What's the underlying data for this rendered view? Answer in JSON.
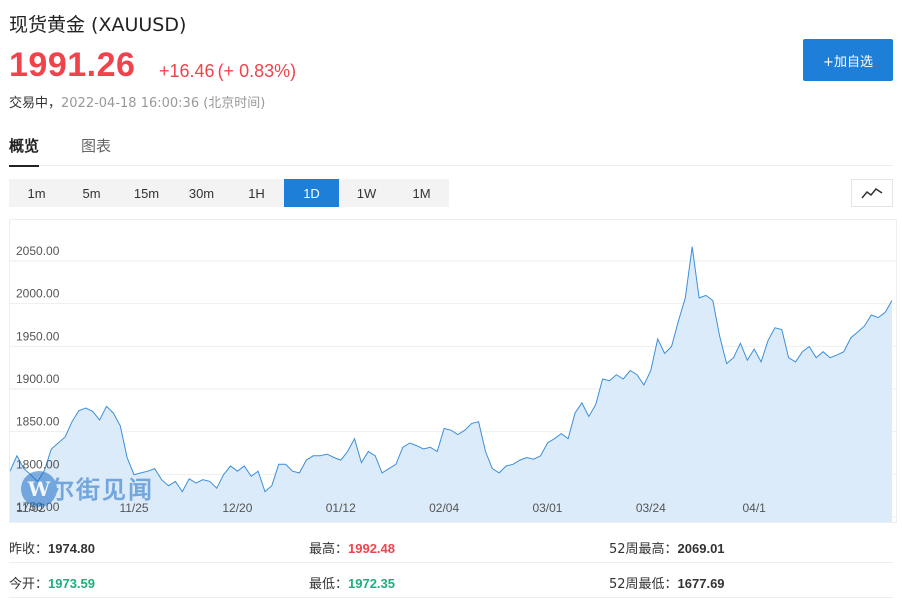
{
  "header": {
    "title": "现货黄金  (XAUUSD)",
    "price": "1991.26",
    "change": "+16.46",
    "change_pct": "(+ 0.83%)",
    "status": "交易中，",
    "timestamp": "2022-04-18 16:00:36",
    "timezone": "(北京时间)",
    "add_button": "+加自选"
  },
  "tabs": [
    {
      "label": "概览",
      "active": true
    },
    {
      "label": "图表",
      "active": false
    }
  ],
  "periods": [
    {
      "label": "1m",
      "active": false
    },
    {
      "label": "5m",
      "active": false
    },
    {
      "label": "15m",
      "active": false
    },
    {
      "label": "30m",
      "active": false
    },
    {
      "label": "1H",
      "active": false
    },
    {
      "label": "1D",
      "active": true
    },
    {
      "label": "1W",
      "active": false
    },
    {
      "label": "1M",
      "active": false
    }
  ],
  "chart_icon": "line-chart-icon",
  "watermark": "华尔街见闻",
  "colors": {
    "up": "#f0434c",
    "down": "#1fae7a",
    "accent": "#1e7fd8",
    "line": "#3b8fd9",
    "fill": "#dcebfa"
  },
  "chart_data": {
    "type": "area",
    "ylim": [
      1750,
      2080
    ],
    "yticks": [
      "2050.00",
      "2000.00",
      "1950.00",
      "1900.00",
      "1850.00",
      "1800.00",
      "1750.00"
    ],
    "ytick_values": [
      2050,
      2000,
      1950,
      1900,
      1850,
      1800,
      1750
    ],
    "xlabels": [
      {
        "label": "11/02",
        "index": 3
      },
      {
        "label": "11/25",
        "index": 18
      },
      {
        "label": "12/20",
        "index": 33
      },
      {
        "label": "01/12",
        "index": 48
      },
      {
        "label": "02/04",
        "index": 63
      },
      {
        "label": "03/01",
        "index": 78
      },
      {
        "label": "03/24",
        "index": 93
      },
      {
        "label": "04/1",
        "index": 108
      }
    ],
    "values": [
      1792,
      1810,
      1795,
      1788,
      1780,
      1793,
      1818,
      1825,
      1832,
      1850,
      1863,
      1866,
      1862,
      1852,
      1868,
      1860,
      1845,
      1808,
      1788,
      1790,
      1792,
      1795,
      1782,
      1775,
      1780,
      1768,
      1783,
      1778,
      1782,
      1780,
      1772,
      1788,
      1798,
      1792,
      1798,
      1786,
      1792,
      1768,
      1775,
      1800,
      1800,
      1792,
      1790,
      1805,
      1810,
      1810,
      1812,
      1808,
      1805,
      1815,
      1830,
      1802,
      1815,
      1810,
      1790,
      1795,
      1800,
      1820,
      1825,
      1822,
      1818,
      1820,
      1815,
      1842,
      1840,
      1835,
      1840,
      1848,
      1850,
      1815,
      1795,
      1790,
      1798,
      1800,
      1805,
      1808,
      1806,
      1810,
      1825,
      1830,
      1836,
      1830,
      1860,
      1872,
      1856,
      1870,
      1900,
      1898,
      1905,
      1900,
      1910,
      1905,
      1893,
      1910,
      1947,
      1930,
      1938,
      1968,
      1995,
      2055,
      1995,
      1998,
      1992,
      1950,
      1918,
      1925,
      1942,
      1922,
      1935,
      1920,
      1945,
      1960,
      1958,
      1925,
      1920,
      1932,
      1938,
      1925,
      1932,
      1925,
      1928,
      1932,
      1948,
      1955,
      1962,
      1975,
      1972,
      1978,
      1992
    ]
  },
  "stats": [
    [
      {
        "label": "昨收：",
        "value": "1974.80",
        "tone": ""
      },
      {
        "label": "最高：",
        "value": "1992.48",
        "tone": "up"
      },
      {
        "label": "52周最高：",
        "value": "2069.01",
        "tone": ""
      }
    ],
    [
      {
        "label": "今开：",
        "value": "1973.59",
        "tone": "down"
      },
      {
        "label": "最低：",
        "value": "1972.35",
        "tone": "down"
      },
      {
        "label": "52周最低：",
        "value": "1677.69",
        "tone": ""
      }
    ]
  ]
}
